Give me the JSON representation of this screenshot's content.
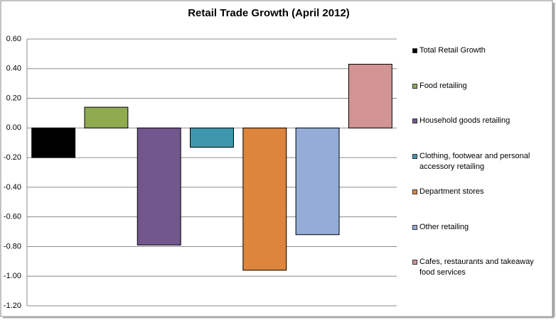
{
  "chart_data": {
    "type": "bar",
    "title": "Retail Trade Growth (April 2012)",
    "series": [
      {
        "name": "Total Retail Growth",
        "color": "#000000",
        "values": [
          -0.2
        ]
      },
      {
        "name": "Food retailing",
        "color": "#8faa4f",
        "values": [
          0.14
        ]
      },
      {
        "name": "Household goods retailing",
        "color": "#72578f",
        "values": [
          -0.79
        ]
      },
      {
        "name": "Clothing, footwear and personal accessory retailing",
        "color": "#3d98ad",
        "values": [
          -0.13
        ]
      },
      {
        "name": "Department stores",
        "color": "#dd853d",
        "values": [
          -0.96
        ]
      },
      {
        "name": "Other retailing",
        "color": "#94acd6",
        "values": [
          -0.72
        ]
      },
      {
        "name": "Cafes, restaurants and takeaway food services",
        "color": "#d49494",
        "values": [
          0.43
        ]
      }
    ],
    "ylim": [
      -1.2,
      0.6
    ],
    "yticks": [
      {
        "value": 0.6,
        "label": "0.60"
      },
      {
        "value": 0.4,
        "label": "0.40"
      },
      {
        "value": 0.2,
        "label": "0.20"
      },
      {
        "value": 0,
        "label": "0.00"
      },
      {
        "value": -0.2,
        "label": "-0.20"
      },
      {
        "value": -0.4,
        "label": "-0.40"
      },
      {
        "value": -0.6,
        "label": "-0.60"
      },
      {
        "value": -0.8,
        "label": "-0.80"
      },
      {
        "value": -1.0,
        "label": "-1.00"
      },
      {
        "value": -1.2,
        "label": "-1.20"
      }
    ],
    "grid": true,
    "legend": "right"
  }
}
